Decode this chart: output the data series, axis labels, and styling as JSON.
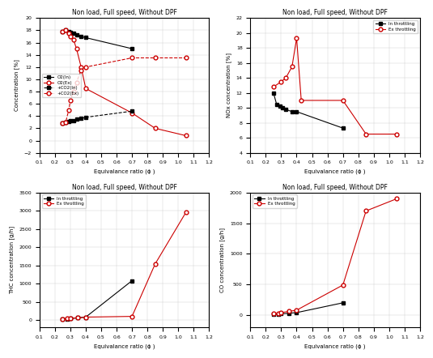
{
  "bg_color": "#ffffff",
  "ax1": {
    "title": "Non load, Full speed, Without DPF",
    "ylabel": "Concentration [%]",
    "xlabel": "Equivalance ratio (ϕ )",
    "xlim": [
      0.1,
      1.2
    ],
    "ylim": [
      -2,
      20
    ],
    "yticks": [
      -2,
      0,
      2,
      4,
      6,
      8,
      10,
      12,
      14,
      16,
      18,
      20
    ],
    "xticks": [
      0.1,
      0.2,
      0.3,
      0.4,
      0.5,
      0.6,
      0.7,
      0.8,
      0.9,
      1.0,
      1.1,
      1.2
    ],
    "O2_In_x": [
      0.25,
      0.27,
      0.29,
      0.3,
      0.32,
      0.34,
      0.37,
      0.4,
      0.7
    ],
    "O2_In_y": [
      17.8,
      18.0,
      17.8,
      17.7,
      17.5,
      17.2,
      17.0,
      16.8,
      15.0
    ],
    "O2_Ex_x": [
      0.25,
      0.27,
      0.29,
      0.3,
      0.32,
      0.34,
      0.37,
      0.4,
      0.7,
      0.85,
      1.05
    ],
    "O2_Ex_y": [
      17.8,
      18.0,
      17.5,
      17.0,
      16.5,
      15.0,
      12.0,
      8.5,
      4.5,
      2.0,
      0.8
    ],
    "CO2_In_x": [
      0.25,
      0.27,
      0.29,
      0.3,
      0.32,
      0.34,
      0.37,
      0.4,
      0.7
    ],
    "CO2_In_y": [
      2.8,
      3.0,
      3.1,
      3.2,
      3.3,
      3.5,
      3.6,
      3.8,
      4.8
    ],
    "CO2_Ex_x": [
      0.25,
      0.27,
      0.29,
      0.3,
      0.32,
      0.34,
      0.37,
      0.4,
      0.7,
      0.85,
      1.05
    ],
    "CO2_Ex_y": [
      2.8,
      3.0,
      5.0,
      6.5,
      8.0,
      9.5,
      11.5,
      12.0,
      13.5,
      13.5,
      13.5
    ]
  },
  "ax2": {
    "title": "Non load, Full speed, Without DPF",
    "ylabel": "NOx concentration [%]",
    "xlabel": "Equivalance ratio (ϕ )",
    "xlim": [
      0.1,
      1.2
    ],
    "ylim": [
      4,
      22
    ],
    "yticks": [
      4,
      6,
      8,
      10,
      12,
      14,
      16,
      18,
      20,
      22
    ],
    "xticks": [
      0.1,
      0.2,
      0.3,
      0.4,
      0.5,
      0.6,
      0.7,
      0.8,
      0.9,
      1.0,
      1.1,
      1.2
    ],
    "In_x": [
      0.25,
      0.27,
      0.29,
      0.31,
      0.33,
      0.37,
      0.4,
      0.7
    ],
    "In_y": [
      12.0,
      10.5,
      10.2,
      10.0,
      9.8,
      9.5,
      9.5,
      7.3
    ],
    "Ex_x": [
      0.25,
      0.3,
      0.33,
      0.37,
      0.4,
      0.43,
      0.7,
      0.85,
      1.05
    ],
    "Ex_y": [
      12.8,
      13.5,
      14.0,
      15.5,
      19.3,
      11.0,
      11.0,
      6.5,
      6.5
    ]
  },
  "ax3": {
    "title": "Non load, Full speed, Without DPF",
    "ylabel": "THC concentration [g/h]",
    "xlabel": "Equivalance ratio (ϕ )",
    "xlim": [
      0.1,
      1.2
    ],
    "ylim": [
      -200,
      3500
    ],
    "yticks": [
      0,
      500,
      1000,
      1500,
      2000,
      2500,
      3000,
      3500
    ],
    "xticks": [
      0.1,
      0.2,
      0.3,
      0.4,
      0.5,
      0.6,
      0.7,
      0.8,
      0.9,
      1.0,
      1.1,
      1.2
    ],
    "In_x": [
      0.25,
      0.28,
      0.3,
      0.35,
      0.4,
      0.7
    ],
    "In_y": [
      30,
      30,
      40,
      60,
      80,
      1080
    ],
    "Ex_x": [
      0.25,
      0.28,
      0.3,
      0.35,
      0.4,
      0.7,
      0.85,
      1.05
    ],
    "Ex_y": [
      30,
      40,
      50,
      60,
      80,
      100,
      1540,
      2960
    ]
  },
  "ax4": {
    "title": "Non load, Full speed, Without DPF",
    "ylabel": "CO concentration [g/h]",
    "xlabel": "Equivalance ratio (ϕ )",
    "xlim": [
      0.1,
      1.2
    ],
    "ylim": [
      -200,
      2000
    ],
    "yticks": [
      0,
      500,
      1000,
      1500,
      2000
    ],
    "xticks": [
      0.1,
      0.2,
      0.3,
      0.4,
      0.5,
      0.6,
      0.7,
      0.8,
      0.9,
      1.0,
      1.1,
      1.2
    ],
    "In_x": [
      0.25,
      0.28,
      0.3,
      0.35,
      0.4,
      0.7
    ],
    "In_y": [
      10,
      15,
      20,
      30,
      40,
      200
    ],
    "Ex_x": [
      0.25,
      0.28,
      0.3,
      0.35,
      0.4,
      0.7,
      0.85,
      1.05
    ],
    "Ex_y": [
      20,
      30,
      40,
      60,
      80,
      490,
      1700,
      1900
    ]
  },
  "styles": {
    "black_solid": {
      "color": "#000000",
      "linestyle": "-",
      "marker": "s",
      "markersize": 3.5,
      "mfc": "#000000",
      "mec": "#000000"
    },
    "red_solid": {
      "color": "#cc0000",
      "linestyle": "-",
      "marker": "o",
      "markersize": 3.5,
      "mfc": "#ffffff",
      "mec": "#cc0000"
    },
    "black_dashed": {
      "color": "#000000",
      "linestyle": "--",
      "marker": "s",
      "markersize": 3.5,
      "mfc": "#000000",
      "mec": "#000000"
    },
    "red_dashed": {
      "color": "#cc0000",
      "linestyle": "--",
      "marker": "o",
      "markersize": 3.5,
      "mfc": "#ffffff",
      "mec": "#cc0000"
    }
  },
  "legend_labels": {
    "ax1": [
      "O2(In)",
      "O2(Ex)",
      "+CO2(In)",
      "+CO2(Ex)"
    ],
    "ax2": [
      "In throttling",
      "Ex throttling"
    ],
    "ax3": [
      "In throttling",
      "Ex throttling"
    ],
    "ax4": [
      "In throttling",
      "Ex throttling"
    ]
  }
}
